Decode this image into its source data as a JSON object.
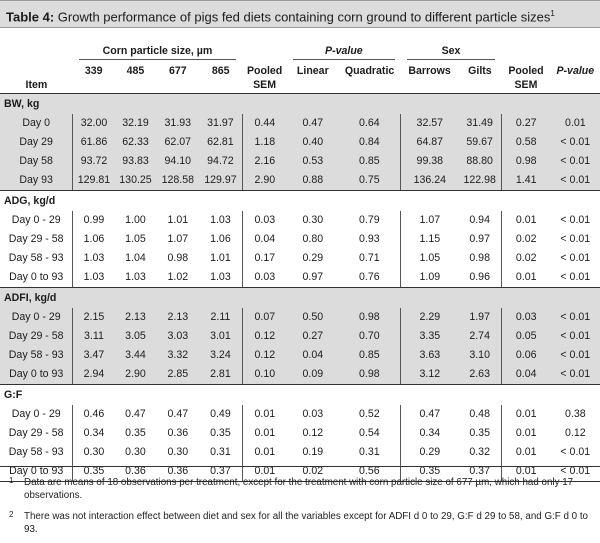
{
  "title": {
    "label": "Table 4:",
    "text": "Growth performance of pigs fed diets containing corn ground to different particle sizes",
    "sup": "1"
  },
  "header": {
    "corn_group": "Corn particle size, µm",
    "pvalue_group": "P-value",
    "sex_group": "Sex",
    "item": "Item",
    "sizes": [
      "339",
      "485",
      "677",
      "865"
    ],
    "pooled": "Pooled",
    "sem": "SEM",
    "linear": "Linear",
    "quadratic": "Quadratic",
    "barrows": "Barrows",
    "gilts": "Gilts",
    "pooled2": "Pooled",
    "sem2": "SEM",
    "pvalue_sex": "P-value"
  },
  "sections": [
    {
      "name": "BW, kg",
      "rows": [
        {
          "label": "Day 0",
          "v": [
            "32.00",
            "32.19",
            "31.93",
            "31.97",
            "0.44",
            "0.47",
            "0.64",
            "32.57",
            "31.49",
            "0.27",
            "0.01"
          ]
        },
        {
          "label": "Day 29",
          "v": [
            "61.86",
            "62.33",
            "62.07",
            "62.81",
            "1.18",
            "0.40",
            "0.84",
            "64.87",
            "59.67",
            "0.58",
            "< 0.01"
          ]
        },
        {
          "label": "Day 58",
          "v": [
            "93.72",
            "93.83",
            "94.10",
            "94.72",
            "2.16",
            "0.53",
            "0.85",
            "99.38",
            "88.80",
            "0.98",
            "< 0.01"
          ]
        },
        {
          "label": "Day 93",
          "v": [
            "129.81",
            "130.25",
            "128.58",
            "129.97",
            "2.90",
            "0.88",
            "0.75",
            "136.24",
            "122.98",
            "1.41",
            "< 0.01"
          ]
        }
      ]
    },
    {
      "name": "ADG, kg/d",
      "rows": [
        {
          "label": "Day 0 - 29",
          "v": [
            "0.99",
            "1.00",
            "1.01",
            "1.03",
            "0.03",
            "0.30",
            "0.79",
            "1.07",
            "0.94",
            "0.01",
            "< 0.01"
          ]
        },
        {
          "label": "Day 29 - 58",
          "v": [
            "1.06",
            "1.05",
            "1.07",
            "1.06",
            "0.04",
            "0.80",
            "0.93",
            "1.15",
            "0.97",
            "0.02",
            "< 0.01"
          ]
        },
        {
          "label": "Day 58 - 93",
          "v": [
            "1.03",
            "1.04",
            "0.98",
            "1.01",
            "0.17",
            "0.29",
            "0.71",
            "1.05",
            "0.98",
            "0.02",
            "< 0.01"
          ]
        },
        {
          "label": "Day 0 to 93",
          "v": [
            "1.03",
            "1.03",
            "1.02",
            "1.03",
            "0.03",
            "0.97",
            "0.76",
            "1.09",
            "0.96",
            "0.01",
            "< 0.01"
          ]
        }
      ]
    },
    {
      "name": "ADFI, kg/d",
      "rows": [
        {
          "label": "Day 0 - 29",
          "v": [
            "2.15",
            "2.13",
            "2.13",
            "2.11",
            "0.07",
            "0.50",
            "0.98",
            "2.29",
            "1.97",
            "0.03",
            "< 0.01"
          ]
        },
        {
          "label": "Day 29 - 58",
          "v": [
            "3.11",
            "3.05",
            "3.03",
            "3.01",
            "0.12",
            "0.27",
            "0.70",
            "3.35",
            "2.74",
            "0.05",
            "< 0.01"
          ]
        },
        {
          "label": "Day 58 - 93",
          "v": [
            "3.47",
            "3.44",
            "3.32",
            "3.24",
            "0.12",
            "0.04",
            "0.85",
            "3.63",
            "3.10",
            "0.06",
            "< 0.01"
          ]
        },
        {
          "label": "Day 0 to 93",
          "v": [
            "2.94",
            "2.90",
            "2.85",
            "2.81",
            "0.10",
            "0.09",
            "0.98",
            "3.12",
            "2.63",
            "0.04",
            "< 0.01"
          ]
        }
      ]
    },
    {
      "name": "G:F",
      "rows": [
        {
          "label": "Day 0 - 29",
          "v": [
            "0.46",
            "0.47",
            "0.47",
            "0.49",
            "0.01",
            "0.03",
            "0.52",
            "0.47",
            "0.48",
            "0.01",
            "0.38"
          ]
        },
        {
          "label": "Day 29 - 58",
          "v": [
            "0.34",
            "0.35",
            "0.36",
            "0.35",
            "0.01",
            "0.12",
            "0.54",
            "0.34",
            "0.35",
            "0.01",
            "0.12"
          ]
        },
        {
          "label": "Day 58 - 93",
          "v": [
            "0.30",
            "0.30",
            "0.30",
            "0.31",
            "0.01",
            "0.19",
            "0.31",
            "0.29",
            "0.32",
            "0.01",
            "< 0.01"
          ]
        },
        {
          "label": "Day 0 to 93",
          "v": [
            "0.35",
            "0.36",
            "0.36",
            "0.37",
            "0.01",
            "0.02",
            "0.56",
            "0.35",
            "0.37",
            "0.01",
            "< 0.01"
          ]
        }
      ]
    }
  ],
  "footnotes": [
    {
      "mark": "1",
      "text": "Data are means of 18 observations per treatment, except for the treatment with corn particle size of 677 µm, which had only 17 observations."
    },
    {
      "mark": "2",
      "text": "There was not interaction effect between diet and sex for all the variables except for ADFI d 0 to 29, G:F d 29 to 58, and G:F d 0 to 93."
    }
  ]
}
